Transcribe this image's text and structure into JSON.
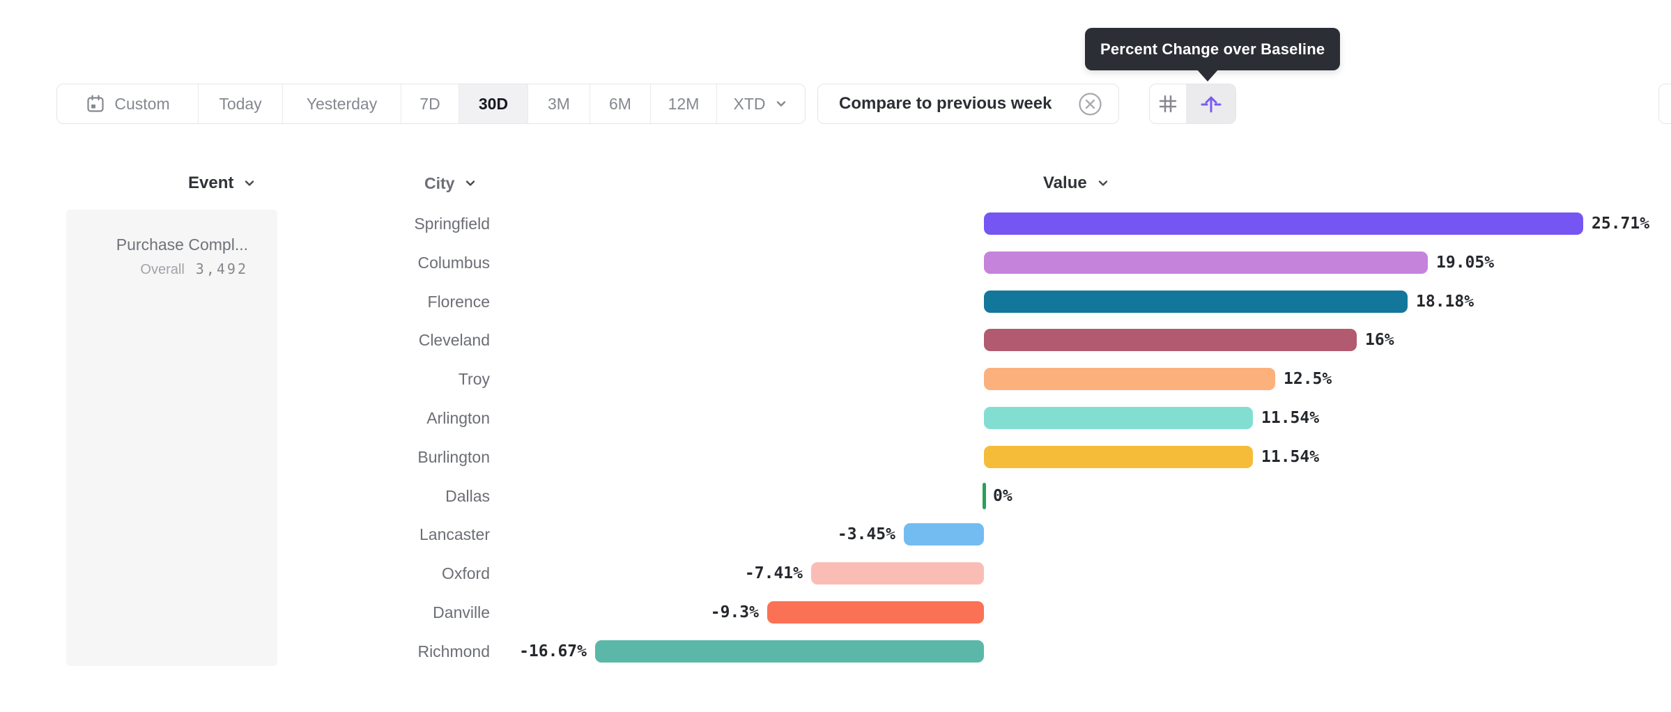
{
  "tooltip": {
    "text": "Percent Change over Baseline"
  },
  "toolbar": {
    "date_ranges": [
      {
        "label": "Custom",
        "icon": "calendar-icon",
        "selected": false
      },
      {
        "label": "Today",
        "selected": false
      },
      {
        "label": "Yesterday",
        "selected": false
      },
      {
        "label": "7D",
        "selected": false
      },
      {
        "label": "30D",
        "selected": true
      },
      {
        "label": "3M",
        "selected": false
      },
      {
        "label": "6M",
        "selected": false
      },
      {
        "label": "12M",
        "selected": false
      },
      {
        "label": "XTD",
        "icon": "chevron-down-icon",
        "selected": false
      }
    ],
    "compare_chip": {
      "label": "Compare to previous week",
      "dismiss_icon": "x-circle-icon"
    },
    "view_toggle": {
      "options": [
        {
          "icon": "grid-icon",
          "selected": false
        },
        {
          "icon": "percent-change-baseline-icon",
          "selected": true
        }
      ]
    }
  },
  "columns": {
    "event": "Event",
    "city": "City",
    "value": "Value"
  },
  "event_panel": {
    "event_name": "Purchase Compl...",
    "overall_label": "Overall",
    "overall_value": "3,492"
  },
  "chart_data": {
    "type": "bar",
    "orientation": "horizontal",
    "title": "Percent Change over Baseline",
    "categories": [
      "Springfield",
      "Columbus",
      "Florence",
      "Cleveland",
      "Troy",
      "Arlington",
      "Burlington",
      "Dallas",
      "Lancaster",
      "Oxford",
      "Danville",
      "Richmond"
    ],
    "values": [
      25.71,
      19.05,
      18.18,
      16,
      12.5,
      11.54,
      11.54,
      0,
      -3.45,
      -7.41,
      -9.3,
      -16.67
    ],
    "labels": [
      "25.71%",
      "19.05%",
      "18.18%",
      "16%",
      "12.5%",
      "11.54%",
      "11.54%",
      "0%",
      "-3.45%",
      "-7.41%",
      "-9.3%",
      "-16.67%"
    ],
    "colors": [
      "#7656f2",
      "#c583dc",
      "#13779b",
      "#b25a70",
      "#fcb07c",
      "#83ded2",
      "#f5bc39",
      "#2aa05d",
      "#73bcf1",
      "#fabdb5",
      "#fb7155",
      "#5bb8a8"
    ],
    "xlim": [
      -16.67,
      25.71
    ],
    "grid": false,
    "legend": false,
    "value_label_position": "outside-end"
  },
  "theme": {
    "accent_purple": "#7a5bf2",
    "tooltip_bg": "#2b2e35",
    "selected_pill_bg": "#f1f1f3",
    "border": "#e4e5e8",
    "text_dark": "#2b2e34",
    "text_gray": "#85888f",
    "panel_bg": "#f6f6f7",
    "zero_tick_green": "#2aa05d"
  }
}
